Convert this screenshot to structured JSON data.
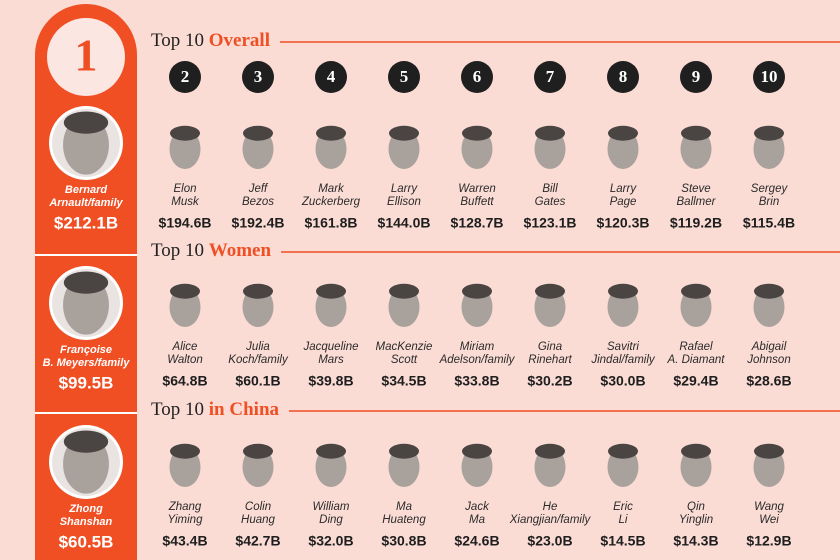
{
  "leader_rank": "1",
  "ranks": [
    "2",
    "3",
    "4",
    "5",
    "6",
    "7",
    "8",
    "9",
    "10"
  ],
  "sections": [
    {
      "title_prefix": "Top 10",
      "title_highlight": "Overall",
      "leader": {
        "name": [
          "Bernard",
          "Arnault/family"
        ],
        "worth": "$212.1B"
      },
      "people": [
        {
          "name": [
            "Elon",
            "Musk"
          ],
          "worth": "$194.6B"
        },
        {
          "name": [
            "Jeff",
            "Bezos"
          ],
          "worth": "$192.4B"
        },
        {
          "name": [
            "Mark",
            "Zuckerberg"
          ],
          "worth": "$161.8B"
        },
        {
          "name": [
            "Larry",
            "Ellison"
          ],
          "worth": "$144.0B"
        },
        {
          "name": [
            "Warren",
            "Buffett"
          ],
          "worth": "$128.7B"
        },
        {
          "name": [
            "Bill",
            "Gates"
          ],
          "worth": "$123.1B"
        },
        {
          "name": [
            "Larry",
            "Page"
          ],
          "worth": "$120.3B"
        },
        {
          "name": [
            "Steve",
            "Ballmer"
          ],
          "worth": "$119.2B"
        },
        {
          "name": [
            "Sergey",
            "Brin"
          ],
          "worth": "$115.4B"
        }
      ]
    },
    {
      "title_prefix": "Top 10",
      "title_highlight": "Women",
      "leader": {
        "name": [
          "Françoise",
          "B. Meyers/family"
        ],
        "worth": "$99.5B"
      },
      "people": [
        {
          "name": [
            "Alice",
            "Walton"
          ],
          "worth": "$64.8B"
        },
        {
          "name": [
            "Julia",
            "Koch/family"
          ],
          "worth": "$60.1B"
        },
        {
          "name": [
            "Jacqueline",
            "Mars"
          ],
          "worth": "$39.8B"
        },
        {
          "name": [
            "MacKenzie",
            "Scott"
          ],
          "worth": "$34.5B"
        },
        {
          "name": [
            "Miriam",
            "Adelson/family"
          ],
          "worth": "$33.8B"
        },
        {
          "name": [
            "Gina",
            "Rinehart"
          ],
          "worth": "$30.2B"
        },
        {
          "name": [
            "Savitri",
            "Jindal/family"
          ],
          "worth": "$30.0B"
        },
        {
          "name": [
            "Rafael",
            "A. Diamant"
          ],
          "worth": "$29.4B"
        },
        {
          "name": [
            "Abigail",
            "Johnson"
          ],
          "worth": "$28.6B"
        }
      ]
    },
    {
      "title_prefix": "Top 10",
      "title_highlight": "in China",
      "leader": {
        "name": [
          "Zhong",
          "Shanshan"
        ],
        "worth": "$60.5B"
      },
      "people": [
        {
          "name": [
            "Zhang",
            "Yiming"
          ],
          "worth": "$43.4B"
        },
        {
          "name": [
            "Colin",
            "Huang"
          ],
          "worth": "$42.7B"
        },
        {
          "name": [
            "William",
            "Ding"
          ],
          "worth": "$32.0B"
        },
        {
          "name": [
            "Ma",
            "Huateng"
          ],
          "worth": "$30.8B"
        },
        {
          "name": [
            "Jack",
            "Ma"
          ],
          "worth": "$24.6B"
        },
        {
          "name": [
            "He",
            "Xiangjian/family"
          ],
          "worth": "$23.0B"
        },
        {
          "name": [
            "Eric",
            "Li"
          ],
          "worth": "$14.5B"
        },
        {
          "name": [
            "Qin",
            "Yinglin"
          ],
          "worth": "$14.3B"
        },
        {
          "name": [
            "Wang",
            "Wei"
          ],
          "worth": "$12.9B"
        }
      ]
    }
  ]
}
